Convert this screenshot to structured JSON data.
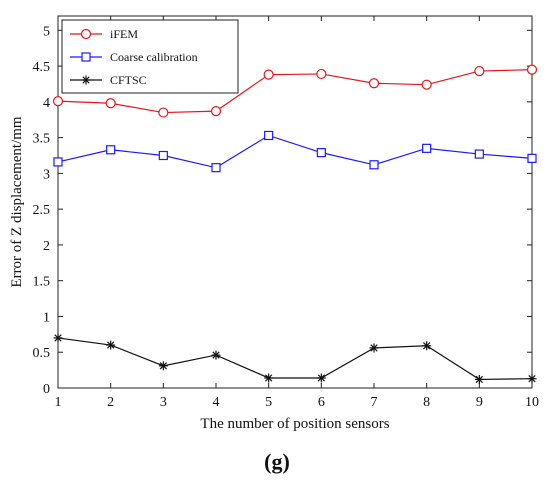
{
  "panel_label": "(g)",
  "chart_data": {
    "type": "line",
    "xlabel": "The number of position sensors",
    "ylabel": "Error of Z displacement/mm",
    "x": [
      1,
      2,
      3,
      4,
      5,
      6,
      7,
      8,
      9,
      10
    ],
    "xlim": [
      1,
      10
    ],
    "ylim": [
      0,
      5.2
    ],
    "xticks": [
      "1",
      "2",
      "3",
      "4",
      "5",
      "6",
      "7",
      "8",
      "9",
      "10"
    ],
    "yticks": [
      "0",
      "0.5",
      "1",
      "1.5",
      "2",
      "2.5",
      "3",
      "3.5",
      "4",
      "4.5",
      "5"
    ],
    "grid": false,
    "legend_position": "top-left",
    "series": [
      {
        "name": "iFEM",
        "color": "#e8141c",
        "marker": "circle",
        "values": [
          4.01,
          3.98,
          3.85,
          3.87,
          4.38,
          4.39,
          4.26,
          4.24,
          4.43,
          4.45
        ]
      },
      {
        "name": "Coarse calibration",
        "color": "#1a1aff",
        "marker": "square",
        "values": [
          3.16,
          3.33,
          3.25,
          3.08,
          3.53,
          3.29,
          3.12,
          3.35,
          3.27,
          3.21
        ]
      },
      {
        "name": "CFTSC",
        "color": "#111111",
        "marker": "asterisk",
        "values": [
          0.7,
          0.6,
          0.31,
          0.46,
          0.14,
          0.14,
          0.56,
          0.59,
          0.12,
          0.13
        ]
      }
    ]
  }
}
